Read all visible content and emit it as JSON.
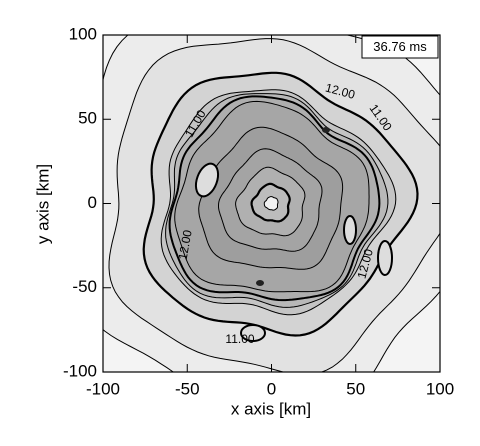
{
  "chart_data": {
    "type": "contour",
    "x_label": "x axis [km]",
    "y_label": "y axis [km]",
    "annotation": "36.76 ms",
    "xlim": [
      -100,
      100
    ],
    "ylim": [
      -100,
      100
    ],
    "xticks": [
      -100,
      -50,
      0,
      50,
      100
    ],
    "yticks": [
      -100,
      -50,
      0,
      50,
      100
    ],
    "contour_labels": {
      "values": [
        11,
        11,
        11,
        12,
        12,
        12
      ],
      "value_labels": [
        "11.00",
        "11.00",
        "11.00",
        "12.00",
        "12.00",
        "12.00"
      ]
    }
  }
}
